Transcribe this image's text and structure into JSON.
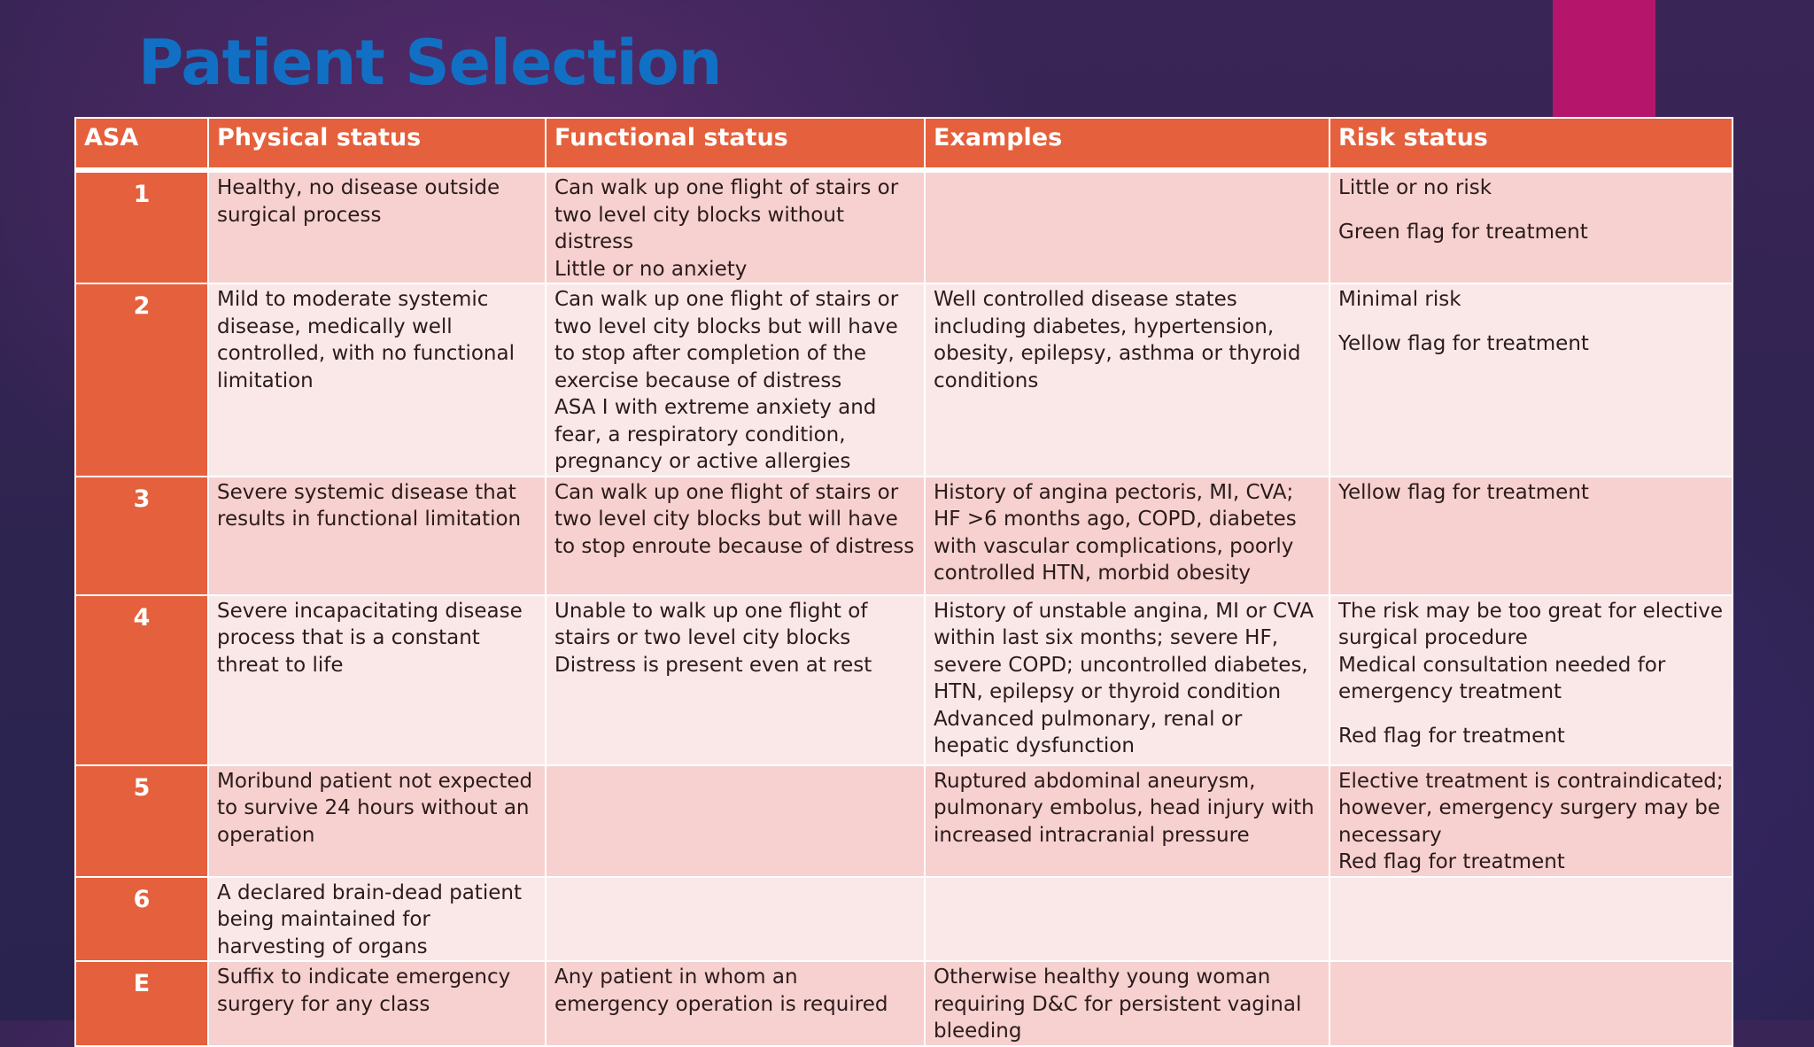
{
  "slide": {
    "title": "Patient Selection"
  },
  "table": {
    "headers": {
      "asa": "ASA",
      "physical": "Physical status",
      "functional": "Functional status",
      "examples": "Examples",
      "risk": "Risk status"
    },
    "rows": [
      {
        "asa": "1",
        "physical": [
          "Healthy, no disease outside surgical process"
        ],
        "functional": [
          "Can walk up one flight of stairs or two level city blocks without distress",
          "Little or no anxiety"
        ],
        "examples": [],
        "risk": [
          "Little or no risk",
          "Green flag for treatment"
        ]
      },
      {
        "asa": "2",
        "physical": [
          "Mild to moderate systemic disease, medically well controlled, with no functional limitation"
        ],
        "functional": [
          "Can walk up one flight of stairs or two level city blocks but will have to stop after completion of the exercise because of distress",
          "ASA I with extreme anxiety and fear, a respiratory condition, pregnancy or active allergies"
        ],
        "examples": [
          "Well controlled disease states including diabetes, hypertension, obesity, epilepsy, asthma or thyroid conditions"
        ],
        "risk": [
          "Minimal risk",
          "Yellow flag for treatment"
        ]
      },
      {
        "asa": "3",
        "physical": [
          "Severe systemic disease that results in functional limitation"
        ],
        "functional": [
          "Can walk up one flight of stairs or two level city blocks but will have to stop enroute because of distress"
        ],
        "examples": [
          "History of angina pectoris, MI, CVA; HF >6 months ago, COPD, diabetes with vascular complications, poorly controlled HTN, morbid obesity"
        ],
        "risk": [
          "Yellow flag for treatment"
        ]
      },
      {
        "asa": "4",
        "physical": [
          "Severe incapacitating disease process that is a constant threat to life"
        ],
        "functional": [
          "Unable to walk up one flight of stairs or two level city blocks",
          "Distress is present even at rest"
        ],
        "examples": [
          "History of unstable angina, MI or CVA within last six months; severe HF, severe COPD; uncontrolled diabetes, HTN, epilepsy or thyroid condition",
          "Advanced pulmonary, renal or hepatic dysfunction"
        ],
        "risk": [
          "The risk may be too great for elective surgical procedure",
          "Medical consultation needed for emergency treatment",
          "Red flag for treatment"
        ]
      },
      {
        "asa": "5",
        "physical": [
          "Moribund patient not expected to survive 24 hours without an operation"
        ],
        "functional": [],
        "examples": [
          "Ruptured abdominal aneurysm, pulmonary embolus, head injury with increased intracranial pressure"
        ],
        "risk": [
          "Elective treatment is contraindicated; however, emergency surgery may be necessary",
          "Red flag for treatment"
        ]
      },
      {
        "asa": "6",
        "physical": [
          "A declared brain-dead patient being maintained for harvesting of organs"
        ],
        "functional": [],
        "examples": [],
        "risk": []
      },
      {
        "asa": "E",
        "physical": [
          "Suffix to indicate emergency surgery for any class"
        ],
        "functional": [
          "Any patient in whom an emergency operation is required"
        ],
        "examples": [
          "Otherwise healthy young woman requiring D&C for persistent vaginal bleeding"
        ],
        "risk": []
      }
    ]
  },
  "colors": {
    "title": "#1170c4",
    "accent_bar": "#b5166b",
    "header_bg": "#e5603c",
    "row_dark": "#f6d1cf",
    "row_light": "#fae8e8"
  }
}
